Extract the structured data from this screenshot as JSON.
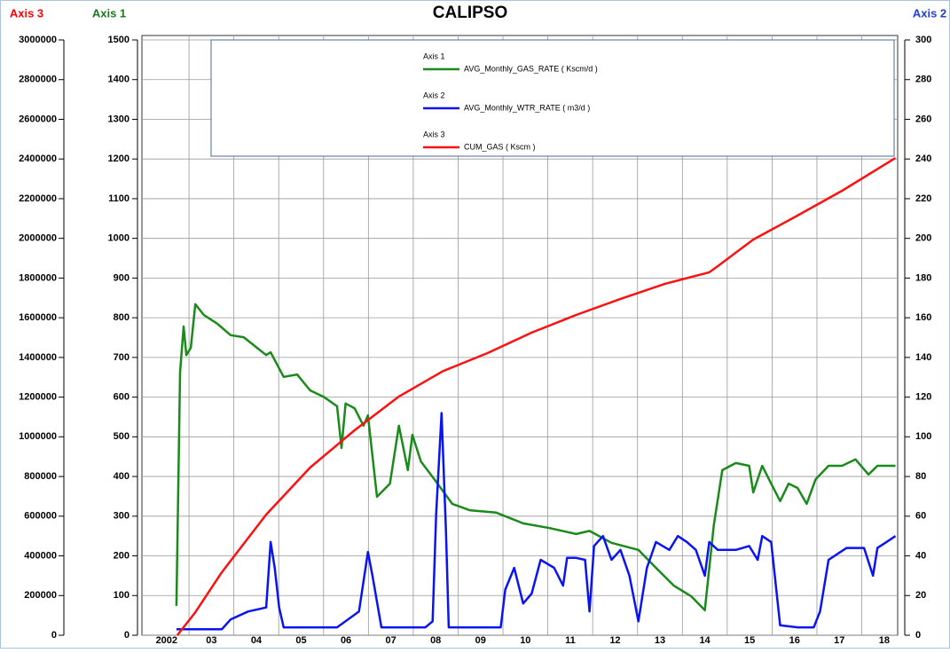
{
  "chart_data": {
    "type": "line",
    "title": "CALIPSO",
    "y_label": "Axis 1",
    "y2_label": "Axis 2",
    "y3_label": "Axis 3",
    "y_label_color": "#1a7a1a",
    "y2_label_color": "#1f3fd0",
    "y3_label_color": "#ff0000",
    "xlim": [
      2001.95,
      2018.8
    ],
    "xticks": [
      {
        "value": 2002.5,
        "label": "2002"
      },
      {
        "value": 2003.5,
        "label": "03"
      },
      {
        "value": 2004.5,
        "label": "04"
      },
      {
        "value": 2005.5,
        "label": "05"
      },
      {
        "value": 2006.5,
        "label": "06"
      },
      {
        "value": 2007.5,
        "label": "07"
      },
      {
        "value": 2008.5,
        "label": "08"
      },
      {
        "value": 2009.5,
        "label": "09"
      },
      {
        "value": 2010.5,
        "label": "10"
      },
      {
        "value": 2011.5,
        "label": "11"
      },
      {
        "value": 2012.5,
        "label": "12"
      },
      {
        "value": 2013.5,
        "label": "13"
      },
      {
        "value": 2014.5,
        "label": "14"
      },
      {
        "value": 2015.5,
        "label": "15"
      },
      {
        "value": 2016.5,
        "label": "16"
      },
      {
        "value": 2017.5,
        "label": "17"
      },
      {
        "value": 2018.5,
        "label": "18"
      }
    ],
    "x_gridlines": [
      2003,
      2004,
      2005,
      2006,
      2007,
      2008,
      2009,
      2010,
      2011,
      2012,
      2013,
      2014,
      2015,
      2016,
      2017,
      2018
    ],
    "ylim": [
      0,
      1500
    ],
    "yticks": [
      0,
      100,
      200,
      300,
      400,
      500,
      600,
      700,
      800,
      900,
      1000,
      1100,
      1200,
      1300,
      1400,
      1500
    ],
    "y2lim": [
      0,
      300
    ],
    "y2ticks": [
      0,
      20,
      40,
      60,
      80,
      100,
      120,
      140,
      160,
      180,
      200,
      220,
      240,
      260,
      280,
      300
    ],
    "y3lim": [
      0,
      3000000
    ],
    "y3ticks": [
      0,
      200000,
      400000,
      600000,
      800000,
      1000000,
      1200000,
      1400000,
      1600000,
      1800000,
      2000000,
      2200000,
      2400000,
      2600000,
      2800000,
      3000000
    ],
    "grid": true,
    "series": [
      {
        "name": "AVG_Monthly_GAS_RATE ( Kscm/d )",
        "axis": "y",
        "color": "#1a8a1a",
        "x": [
          2002.72,
          2002.8,
          2002.88,
          2002.94,
          2003.04,
          2003.14,
          2003.33,
          2003.63,
          2003.93,
          2004.22,
          2004.52,
          2004.72,
          2004.82,
          2005.11,
          2005.41,
          2005.7,
          2006.0,
          2006.3,
          2006.4,
          2006.49,
          2006.69,
          2006.89,
          2006.99,
          2007.19,
          2007.48,
          2007.68,
          2007.88,
          2007.98,
          2008.17,
          2008.47,
          2008.87,
          2009.26,
          2009.85,
          2010.45,
          2011.04,
          2011.63,
          2011.93,
          2012.42,
          2013.02,
          2013.41,
          2013.81,
          2014.2,
          2014.5,
          2014.7,
          2014.89,
          2015.19,
          2015.49,
          2015.58,
          2015.78,
          2015.98,
          2016.18,
          2016.37,
          2016.57,
          2016.77,
          2016.97,
          2017.26,
          2017.56,
          2017.86,
          2018.15,
          2018.35,
          2018.75
        ],
        "values": [
          74,
          662,
          778,
          706,
          724,
          834,
          807,
          785,
          756,
          751,
          724,
          706,
          713,
          651,
          657,
          617,
          601,
          577,
          472,
          584,
          572,
          528,
          554,
          349,
          382,
          528,
          416,
          505,
          438,
          393,
          331,
          315,
          309,
          282,
          270,
          255,
          263,
          233,
          215,
          170,
          125,
          98,
          63,
          277,
          416,
          434,
          427,
          360,
          427,
          382,
          338,
          382,
          371,
          331,
          393,
          427,
          427,
          443,
          405,
          427,
          427
        ]
      },
      {
        "name": "AVG_Monthly_WTR_RATE ( m3/d )",
        "axis": "y2",
        "color": "#0a14f0",
        "x": [
          2002.72,
          2003.73,
          2003.93,
          2004.32,
          2004.72,
          2004.82,
          2004.91,
          2005.01,
          2005.11,
          2006.3,
          2006.79,
          2006.99,
          2007.09,
          2007.29,
          2008.27,
          2008.43,
          2008.51,
          2008.63,
          2008.73,
          2008.79,
          2009.95,
          2010.05,
          2010.25,
          2010.45,
          2010.64,
          2010.84,
          2011.14,
          2011.34,
          2011.43,
          2011.63,
          2011.83,
          2011.93,
          2012.03,
          2012.23,
          2012.42,
          2012.62,
          2012.82,
          2013.02,
          2013.21,
          2013.41,
          2013.71,
          2013.9,
          2014.1,
          2014.3,
          2014.5,
          2014.6,
          2014.79,
          2015.19,
          2015.49,
          2015.68,
          2015.78,
          2015.98,
          2016.18,
          2016.57,
          2016.93,
          2017.07,
          2017.26,
          2017.66,
          2018.05,
          2018.25,
          2018.35,
          2018.55,
          2018.75
        ],
        "values": [
          3,
          3,
          8,
          12,
          14,
          47,
          34,
          14,
          4,
          4,
          12,
          42,
          30,
          4,
          4,
          7,
          61,
          112,
          52,
          4,
          4,
          23,
          34,
          16,
          21,
          38,
          34,
          25,
          39,
          39,
          38,
          12,
          45,
          50,
          38,
          43,
          30,
          7,
          34,
          47,
          43,
          50,
          47,
          43,
          30,
          47,
          43,
          43,
          45,
          38,
          50,
          47,
          5,
          4,
          4,
          12,
          38,
          44,
          44,
          30,
          44,
          47,
          50
        ]
      },
      {
        "name": "CUM_GAS ( Kscm )",
        "axis": "y3",
        "color": "#ff1010",
        "x": [
          2002.74,
          2003.14,
          2003.73,
          2004.72,
          2005.7,
          2006.69,
          2007.68,
          2008.67,
          2009.66,
          2010.64,
          2011.63,
          2012.62,
          2013.61,
          2014.6,
          2014.79,
          2015.58,
          2016.57,
          2017.56,
          2018.75
        ],
        "values": [
          0,
          116000,
          317000,
          608000,
          845000,
          1033000,
          1203000,
          1332000,
          1422000,
          1525000,
          1614000,
          1695000,
          1771000,
          1829000,
          1860000,
          1994000,
          2115000,
          2240000,
          2405000
        ]
      }
    ]
  }
}
